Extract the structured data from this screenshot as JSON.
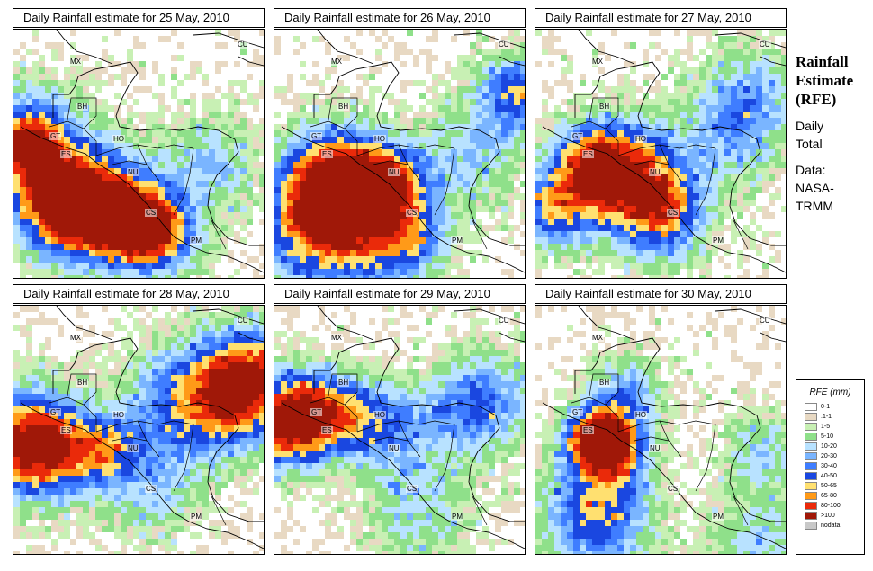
{
  "panels": [
    {
      "title": "Daily Rainfall estimate for  25 May, 2010",
      "seed": 25
    },
    {
      "title": "Daily Rainfall estimate for  26 May, 2010",
      "seed": 26
    },
    {
      "title": "Daily Rainfall estimate for  27 May, 2010",
      "seed": 27
    },
    {
      "title": "Daily Rainfall estimate for  28 May, 2010",
      "seed": 28
    },
    {
      "title": "Daily Rainfall estimate for  29 May, 2010",
      "seed": 29
    },
    {
      "title": "Daily Rainfall estimate for  30 May, 2010",
      "seed": 30
    }
  ],
  "region_labels": {
    "mx": "MX",
    "cu": "CU",
    "bh": "BH",
    "gt": "GT",
    "ho": "HO",
    "es": "ES",
    "nu": "NU",
    "cs": "CS",
    "pm": "PM"
  },
  "sidebar": {
    "heading": [
      "Rainfall",
      "Estimate",
      "(RFE)"
    ],
    "period": [
      "Daily",
      "Total"
    ],
    "source": [
      "Data:",
      "NASA-",
      "TRMM"
    ]
  },
  "legend": {
    "title": "RFE (mm)",
    "classes": [
      {
        "label": "0-1",
        "color": "#ffffff"
      },
      {
        "label": ".1-1",
        "color": "#e8d9c3"
      },
      {
        "label": "1-5",
        "color": "#c8f0b4"
      },
      {
        "label": "5-10",
        "color": "#8fe08a"
      },
      {
        "label": "10-20",
        "color": "#b8e2ff"
      },
      {
        "label": "20-30",
        "color": "#7ab5ff"
      },
      {
        "label": "30-40",
        "color": "#3f7dff"
      },
      {
        "label": "40-50",
        "color": "#1a47e0"
      },
      {
        "label": "50-65",
        "color": "#ffe070"
      },
      {
        "label": "65-80",
        "color": "#ff9a18"
      },
      {
        "label": "80-100",
        "color": "#ea2a0a"
      },
      {
        "label": ">100",
        "color": "#a01808"
      },
      {
        "label": "nodata",
        "color": "#c8c8c8"
      }
    ]
  }
}
